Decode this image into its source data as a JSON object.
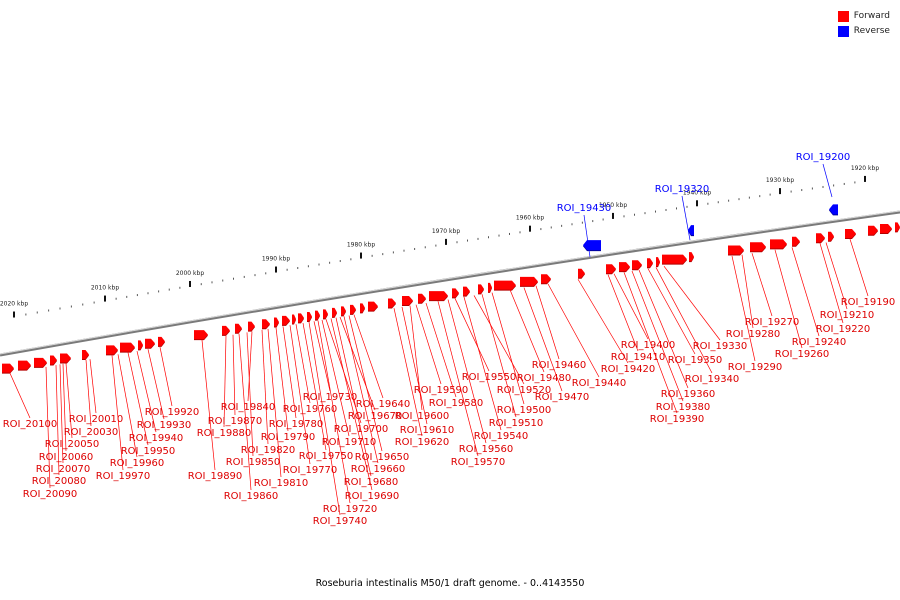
{
  "legend": {
    "forward": {
      "label": "Forward",
      "color": "#ff0000"
    },
    "reverse": {
      "label": "Reverse",
      "color": "#0000ff"
    }
  },
  "caption": "Roseburia intestinalis M50/1 draft genome. - 0..4143550",
  "scale_ticks": [
    "2020 kbp",
    "2010 kbp",
    "2000 kbp",
    "1990 kbp",
    "1980 kbp",
    "1970 kbp",
    "1960 kbp",
    "1950 kbp",
    "1940 kbp",
    "1930 kbp",
    "1920 kbp"
  ],
  "reverse_genes": [
    "ROI_19430",
    "ROI_19320",
    "ROI_19200"
  ],
  "forward_genes": [
    "ROI_20100",
    "ROI_20090",
    "ROI_20080",
    "ROI_20070",
    "ROI_20060",
    "ROI_20050",
    "ROI_20030",
    "ROI_20010",
    "ROI_19970",
    "ROI_19960",
    "ROI_19950",
    "ROI_19940",
    "ROI_19930",
    "ROI_19920",
    "ROI_19890",
    "ROI_19880",
    "ROI_19870",
    "ROI_19860",
    "ROI_19850",
    "ROI_19840",
    "ROI_19820",
    "ROI_19810",
    "ROI_19790",
    "ROI_19780",
    "ROI_19770",
    "ROI_19760",
    "ROI_19750",
    "ROI_19740",
    "ROI_19730",
    "ROI_19720",
    "ROI_19710",
    "ROI_19700",
    "ROI_19690",
    "ROI_19680",
    "ROI_19670",
    "ROI_19660",
    "ROI_19650",
    "ROI_19640",
    "ROI_19620",
    "ROI_19610",
    "ROI_19600",
    "ROI_19590",
    "ROI_19580",
    "ROI_19570",
    "ROI_19560",
    "ROI_19550",
    "ROI_19540",
    "ROI_19520",
    "ROI_19510",
    "ROI_19500",
    "ROI_19480",
    "ROI_19470",
    "ROI_19460",
    "ROI_19440",
    "ROI_19420",
    "ROI_19410",
    "ROI_19400",
    "ROI_19390",
    "ROI_19380",
    "ROI_19360",
    "ROI_19350",
    "ROI_19340",
    "ROI_19330",
    "ROI_19290",
    "ROI_19280",
    "ROI_19270",
    "ROI_19260",
    "ROI_19240",
    "ROI_19220",
    "ROI_19210",
    "ROI_19190"
  ]
}
